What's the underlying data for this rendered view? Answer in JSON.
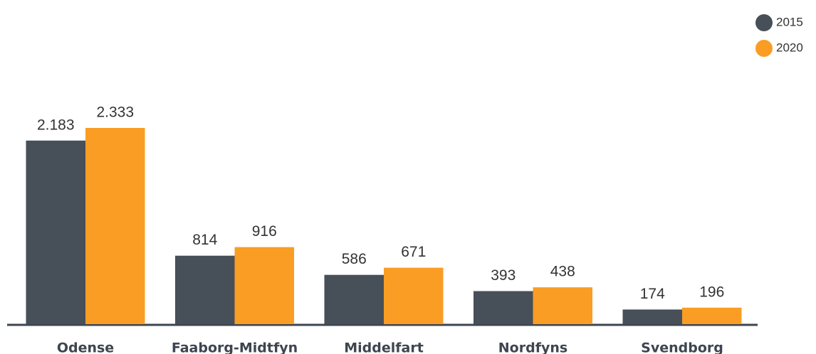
{
  "chart_data": {
    "type": "bar",
    "categories": [
      "Odense",
      "Faaborg-Midtfyn",
      "Middelfart",
      "Nordfyns",
      "Svendborg"
    ],
    "series": [
      {
        "name": "2015",
        "color": "#474f59",
        "values": [
          2183,
          814,
          586,
          393,
          174
        ],
        "value_labels": [
          "2.183",
          "814",
          "586",
          "393",
          "174"
        ]
      },
      {
        "name": "2020",
        "color": "#f99d25",
        "values": [
          2333,
          916,
          671,
          438,
          196
        ],
        "value_labels": [
          "2.333",
          "916",
          "671",
          "438",
          "196"
        ]
      }
    ],
    "legend": "top-right"
  }
}
